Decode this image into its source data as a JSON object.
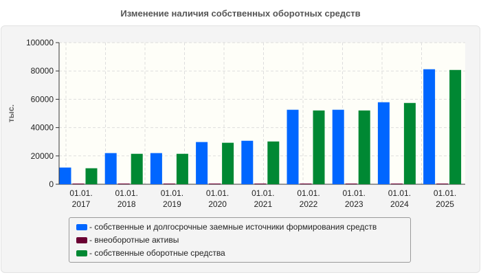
{
  "chart_data": {
    "type": "bar",
    "title": "Изменение наличия собственных оборотных средств",
    "ylabel": "тыс.",
    "ylim": [
      0,
      100000
    ],
    "yticks": [
      "0",
      "20000",
      "40000",
      "60000",
      "80000",
      "100000"
    ],
    "categories": [
      [
        "01.01.",
        "2017"
      ],
      [
        "01.01.",
        "2018"
      ],
      [
        "01.01.",
        "2019"
      ],
      [
        "01.01.",
        "2020"
      ],
      [
        "01.01.",
        "2021"
      ],
      [
        "01.01.",
        "2022"
      ],
      [
        "01.01.",
        "2023"
      ],
      [
        "01.01.",
        "2024"
      ],
      [
        "01.01.",
        "2025"
      ]
    ],
    "series": [
      {
        "name": "- собственные и долгосрочные заемные источники формирования средств",
        "color": "#0066ff",
        "values": [
          11800,
          22000,
          22000,
          29800,
          30700,
          52600,
          52600,
          57900,
          81200
        ]
      },
      {
        "name": "- внеоборотные активы",
        "color": "#6b0033",
        "values": [
          500,
          500,
          500,
          500,
          500,
          500,
          500,
          500,
          500
        ]
      },
      {
        "name": "- собственные оборотные средства",
        "color": "#008833",
        "values": [
          11300,
          21500,
          21500,
          29300,
          30200,
          52100,
          52100,
          57400,
          80700
        ]
      }
    ],
    "legend_position": "bottom"
  }
}
